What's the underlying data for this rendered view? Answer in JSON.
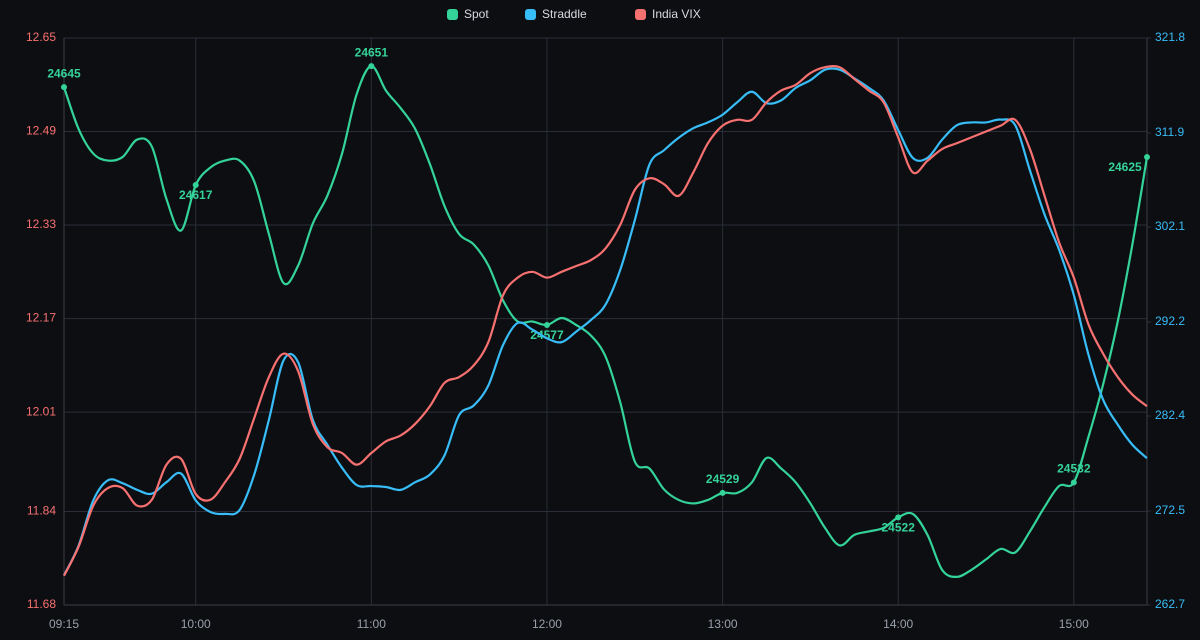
{
  "chart_data": {
    "type": "line",
    "x": [
      "09:15",
      "09:20",
      "09:25",
      "09:30",
      "09:35",
      "09:40",
      "09:45",
      "09:50",
      "09:55",
      "10:00",
      "10:05",
      "10:10",
      "10:15",
      "10:20",
      "10:25",
      "10:30",
      "10:35",
      "10:40",
      "10:45",
      "10:50",
      "10:55",
      "11:00",
      "11:05",
      "11:10",
      "11:15",
      "11:20",
      "11:25",
      "11:30",
      "11:35",
      "11:40",
      "11:45",
      "11:50",
      "11:55",
      "12:00",
      "12:05",
      "12:10",
      "12:15",
      "12:20",
      "12:25",
      "12:30",
      "12:35",
      "12:40",
      "12:45",
      "12:50",
      "12:55",
      "13:00",
      "13:05",
      "13:10",
      "13:15",
      "13:20",
      "13:25",
      "13:30",
      "13:35",
      "13:40",
      "13:45",
      "13:50",
      "13:55",
      "14:00",
      "14:05",
      "14:10",
      "14:15",
      "14:20",
      "14:25",
      "14:30",
      "14:35",
      "14:40",
      "14:45",
      "14:50",
      "14:55",
      "15:00",
      "15:05",
      "15:10",
      "15:15",
      "15:20",
      "15:25"
    ],
    "xticks": [
      "09:15",
      "10:00",
      "11:00",
      "12:00",
      "13:00",
      "14:00",
      "15:00"
    ],
    "series": [
      {
        "name": "Spot",
        "color": "#34d399",
        "data_labels": true,
        "values": [
          24645,
          24633,
          24626,
          24624,
          24625,
          24630,
          24628,
          24613,
          24604,
          24617,
          24622,
          24624,
          24624,
          24618,
          24603,
          24589,
          24594,
          24606,
          24614,
          24626,
          24643,
          24651,
          24644,
          24639,
          24633,
          24623,
          24611,
          24603,
          24600,
          24594,
          24584,
          24578,
          24578,
          24577,
          24579,
          24577,
          24574,
          24568,
          24555,
          24538,
          24536,
          24530,
          24527,
          24526,
          24527,
          24529,
          24529,
          24532,
          24539,
          24536,
          24532,
          24526,
          24519,
          24514,
          24517,
          24518,
          24519,
          24522,
          24523,
          24517,
          24507,
          24505,
          24507,
          24510,
          24513,
          24512,
          24518,
          24525,
          24531,
          24532,
          24545,
          24560,
          24578,
          24600,
          24625
        ]
      },
      {
        "name": "Straddle",
        "color": "#38bdf8",
        "axis": "y2",
        "values": [
          265.8,
          268.9,
          273.6,
          275.7,
          275.4,
          274.7,
          274.3,
          275.5,
          276.4,
          273.6,
          272.4,
          272.2,
          272.6,
          276.3,
          282.0,
          288.2,
          288.0,
          282.0,
          279.4,
          277.0,
          275.2,
          275.1,
          275.0,
          274.7,
          275.5,
          276.3,
          278.3,
          282.5,
          283.5,
          285.6,
          289.8,
          292.1,
          291.4,
          290.5,
          290.1,
          291.2,
          292.4,
          294.0,
          297.6,
          302.8,
          308.6,
          310.1,
          311.4,
          312.4,
          313.0,
          313.8,
          315.1,
          316.2,
          315.0,
          315.3,
          316.6,
          317.4,
          318.5,
          318.5,
          317.6,
          316.6,
          315.3,
          312.2,
          309.3,
          309.3,
          311.2,
          312.7,
          313.0,
          313.0,
          313.3,
          312.7,
          308.0,
          303.4,
          299.7,
          295.0,
          288.8,
          284.1,
          281.5,
          279.4,
          278.0
        ]
      },
      {
        "name": "India VIX",
        "color": "#f87171",
        "axis": "y",
        "values": [
          11.73,
          11.78,
          11.85,
          11.88,
          11.88,
          11.85,
          11.86,
          11.92,
          11.93,
          11.87,
          11.86,
          11.89,
          11.93,
          12.0,
          12.07,
          12.11,
          12.08,
          11.99,
          11.95,
          11.94,
          11.92,
          11.94,
          11.96,
          11.97,
          11.99,
          12.02,
          12.06,
          12.07,
          12.09,
          12.13,
          12.21,
          12.24,
          12.25,
          12.24,
          12.25,
          12.26,
          12.27,
          12.29,
          12.33,
          12.39,
          12.41,
          12.4,
          12.38,
          12.42,
          12.47,
          12.5,
          12.51,
          12.51,
          12.54,
          12.56,
          12.57,
          12.59,
          12.6,
          12.6,
          12.58,
          12.56,
          12.54,
          12.48,
          12.42,
          12.44,
          12.46,
          12.47,
          12.48,
          12.49,
          12.5,
          12.51,
          12.46,
          12.38,
          12.3,
          12.24,
          12.16,
          12.11,
          12.07,
          12.04,
          12.02
        ]
      }
    ],
    "ylim": [
      11.68,
      12.65
    ],
    "yticks": [
      11.68,
      11.84,
      12.01,
      12.17,
      12.33,
      12.49,
      12.65
    ],
    "y2lim": [
      262.7,
      321.8
    ],
    "y2ticks": [
      262.7,
      272.5,
      282.4,
      292.2,
      302.1,
      311.9,
      321.8
    ],
    "grid": true,
    "legend": "top"
  }
}
